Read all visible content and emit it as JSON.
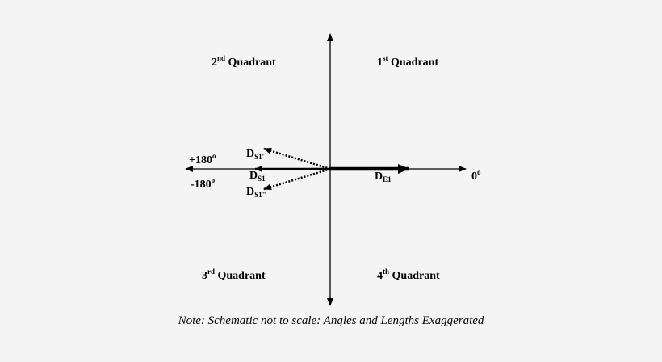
{
  "quadrants": {
    "q1": {
      "num": "1",
      "sup": "st",
      "text": " Quadrant"
    },
    "q2": {
      "num": "2",
      "sup": "nd",
      "text": " Quadrant"
    },
    "q3": {
      "num": "3",
      "sup": "rd",
      "text": " Quadrant"
    },
    "q4": {
      "num": "4",
      "sup": "th",
      "text": " Quadrant"
    }
  },
  "angles": {
    "plus180": {
      "value": "+180",
      "sup": "o"
    },
    "minus180": {
      "value": "-180",
      "sup": "o"
    },
    "zero": {
      "value": "0",
      "sup": "o"
    }
  },
  "vectors": {
    "ds1": {
      "main": "D",
      "sub": "S1"
    },
    "ds1_prime": {
      "main": "D",
      "sub": "S1'"
    },
    "ds1_dprime": {
      "main": "D",
      "sub": "S1\""
    },
    "de1": {
      "main": "D",
      "sub": "E1"
    }
  },
  "note": "Note: Schematic not to scale: Angles and Lengths Exaggerated"
}
